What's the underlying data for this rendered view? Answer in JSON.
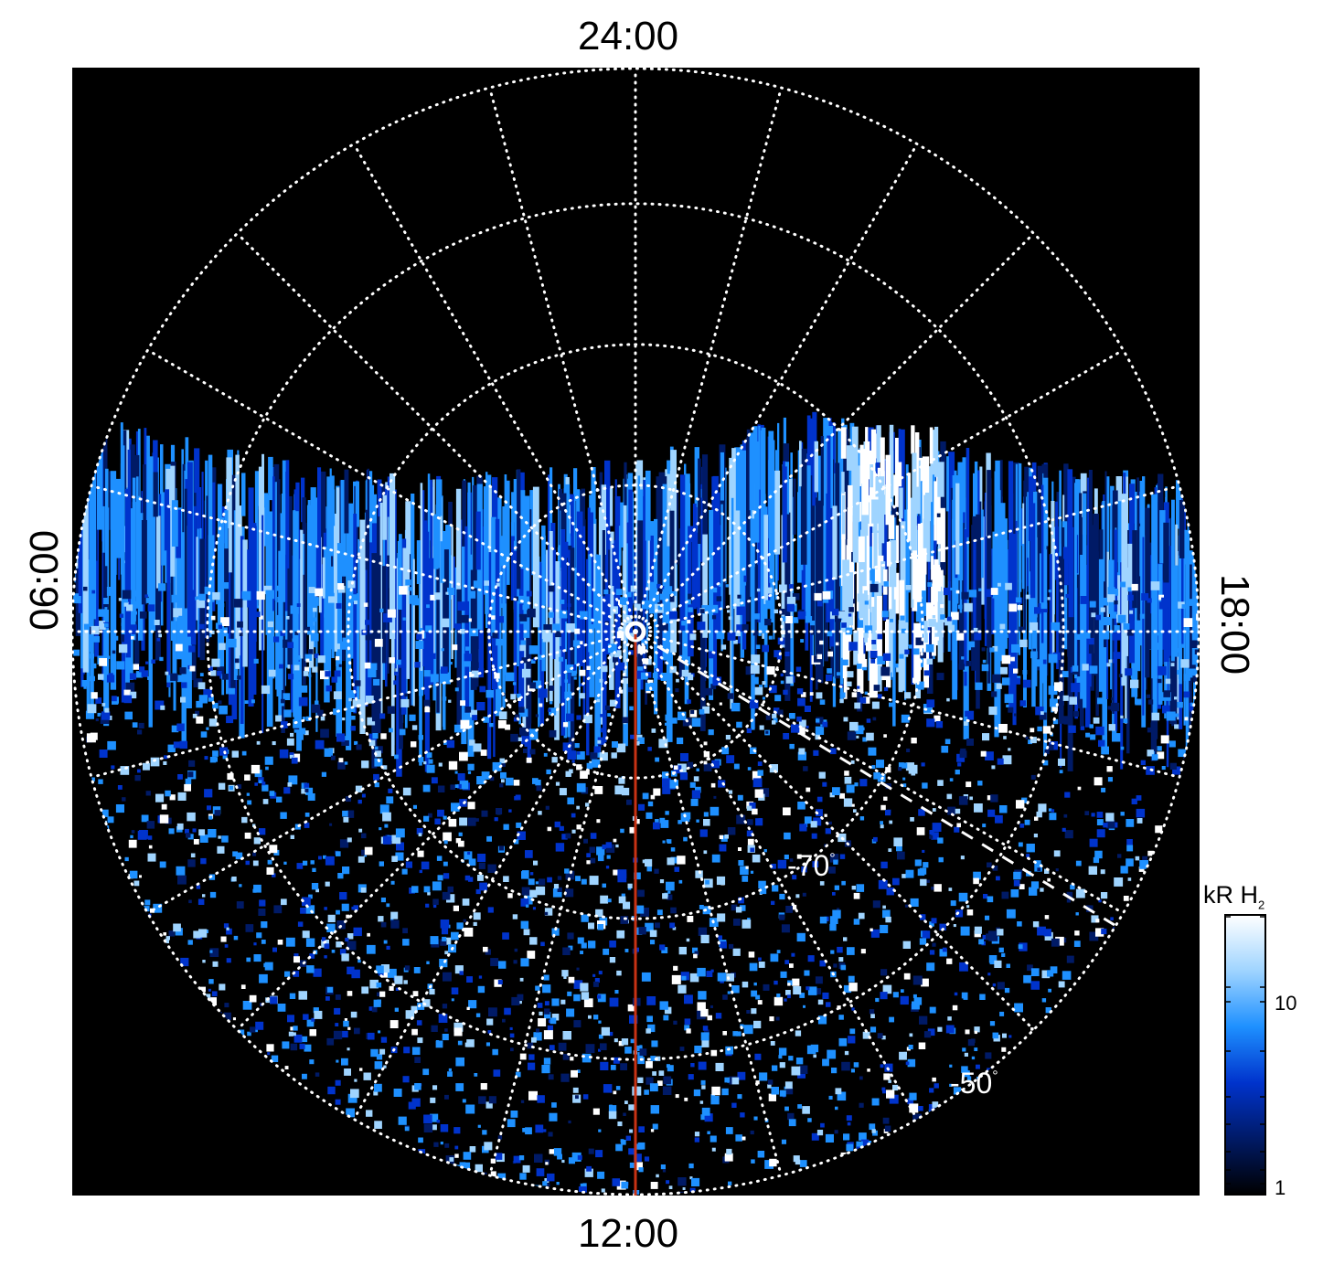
{
  "local_time_labels": {
    "top": "24:00",
    "bottom": "12:00",
    "left": "06:00",
    "right": "18:00"
  },
  "latitude_labels": {
    "inner": "-70",
    "outer": "-50",
    "degree_symbol": "°"
  },
  "colorbar": {
    "title": "kR H",
    "title_subscript": "2",
    "scale": "log",
    "range": [
      1,
      30
    ],
    "tick_labels": [
      "10",
      "1"
    ],
    "colors": [
      "#000000",
      "#001a66",
      "#0033cc",
      "#1e90ff",
      "#9fd4ff",
      "#ffffff"
    ]
  },
  "colors": {
    "background": "#000000",
    "grid": "#ffffff",
    "meridian_line": "#c83214"
  }
}
